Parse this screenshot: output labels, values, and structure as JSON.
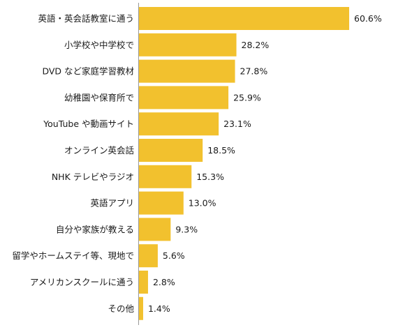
{
  "chart_data": {
    "type": "bar",
    "orientation": "horizontal",
    "categories": [
      "英語・英会話教室に通う",
      "小学校や中学校で",
      "DVD など家庭学習教材",
      "幼稚園や保育所で",
      "YouTube や動画サイト",
      "オンライン英会話",
      "NHK テレビやラジオ",
      "英語アプリ",
      "自分や家族が教える",
      "留学やホームステイ等、現地で",
      "アメリカンスクールに通う",
      "その他"
    ],
    "values": [
      60.6,
      28.2,
      27.8,
      25.9,
      23.1,
      18.5,
      15.3,
      13.0,
      9.3,
      5.6,
      2.8,
      1.4
    ],
    "value_labels": [
      "60.6%",
      "28.2%",
      "27.8%",
      "25.9%",
      "23.1%",
      "18.5%",
      "15.3%",
      "13.0%",
      "9.3%",
      "5.6%",
      "2.8%",
      "1.4%"
    ],
    "unit": "%",
    "xlim": [
      0,
      67
    ],
    "bar_color": "#f2c12e",
    "axis_color": "#999999",
    "grid": false,
    "legend": "none"
  }
}
